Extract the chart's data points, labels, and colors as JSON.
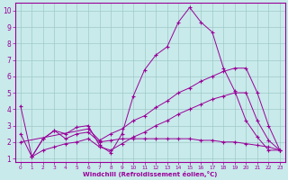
{
  "xlabel": "Windchill (Refroidissement éolien,°C)",
  "bg_color": "#c8eaea",
  "line_color": "#990099",
  "grid_color": "#a0c8c8",
  "xlim": [
    -0.5,
    23.5
  ],
  "ylim": [
    0.8,
    10.5
  ],
  "xticks": [
    0,
    1,
    2,
    3,
    4,
    5,
    6,
    7,
    8,
    9,
    10,
    11,
    12,
    13,
    14,
    15,
    16,
    17,
    18,
    19,
    20,
    21,
    22,
    23
  ],
  "yticks": [
    1,
    2,
    3,
    4,
    5,
    6,
    7,
    8,
    9,
    10
  ],
  "series": [
    {
      "x": [
        0,
        1,
        2,
        3,
        4,
        5,
        6,
        7,
        8,
        9,
        10,
        11,
        12,
        13,
        14,
        15,
        16,
        17,
        18,
        19,
        20,
        21,
        22,
        23
      ],
      "y": [
        4.2,
        1.1,
        2.2,
        2.7,
        2.5,
        2.9,
        3.0,
        1.8,
        1.35,
        2.5,
        4.8,
        6.4,
        7.3,
        7.8,
        9.3,
        10.2,
        9.3,
        8.7,
        6.5,
        5.1,
        3.3,
        2.3,
        1.5,
        1.5
      ]
    },
    {
      "x": [
        0,
        1,
        2,
        3,
        4,
        5,
        6,
        7,
        8,
        9,
        10,
        11,
        12,
        13,
        14,
        15,
        16,
        17,
        18,
        19,
        20,
        21,
        22,
        23
      ],
      "y": [
        2.5,
        1.1,
        2.2,
        2.7,
        2.2,
        2.5,
        2.6,
        2.0,
        2.1,
        2.2,
        2.2,
        2.2,
        2.2,
        2.2,
        2.2,
        2.2,
        2.1,
        2.1,
        2.0,
        2.0,
        1.9,
        1.8,
        1.7,
        1.5
      ]
    },
    {
      "x": [
        0,
        6,
        7,
        8,
        9,
        10,
        11,
        12,
        13,
        14,
        15,
        16,
        17,
        18,
        19,
        20,
        21,
        22,
        23
      ],
      "y": [
        2.0,
        2.8,
        2.1,
        2.5,
        2.8,
        3.3,
        3.6,
        4.1,
        4.5,
        5.0,
        5.3,
        5.7,
        6.0,
        6.3,
        6.5,
        6.5,
        5.0,
        3.0,
        1.5
      ]
    },
    {
      "x": [
        1,
        2,
        3,
        4,
        5,
        6,
        7,
        8,
        9,
        10,
        11,
        12,
        13,
        14,
        15,
        16,
        17,
        18,
        19,
        20,
        21,
        22,
        23
      ],
      "y": [
        1.1,
        1.5,
        1.7,
        1.9,
        2.0,
        2.2,
        1.7,
        1.5,
        1.9,
        2.3,
        2.6,
        3.0,
        3.3,
        3.7,
        4.0,
        4.3,
        4.6,
        4.8,
        5.0,
        5.0,
        3.3,
        2.1,
        1.5
      ]
    }
  ]
}
